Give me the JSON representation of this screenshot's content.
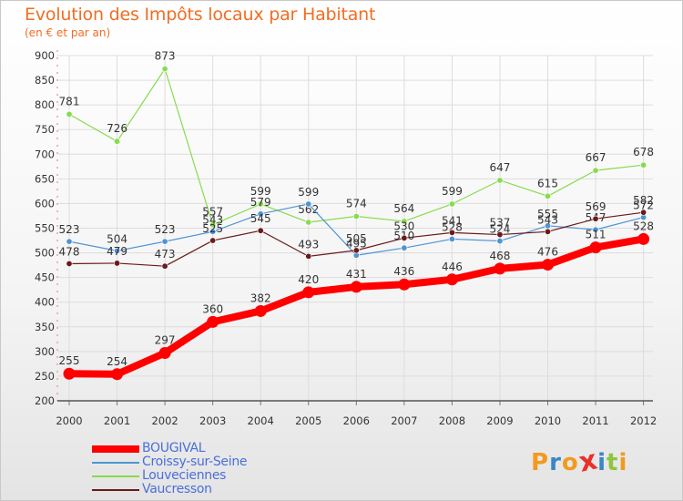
{
  "chart_data": {
    "type": "line",
    "title": "Evolution des Impôts locaux par Habitant",
    "subtitle": "(en € et par an)",
    "xlabel": "",
    "ylabel": "",
    "ylim": [
      200,
      900
    ],
    "yticks": [
      200,
      250,
      300,
      350,
      400,
      450,
      500,
      550,
      600,
      650,
      700,
      750,
      800,
      850,
      900
    ],
    "categories": [
      "2000",
      "2001",
      "2002",
      "2003",
      "2004",
      "2005",
      "2006",
      "2007",
      "2008",
      "2009",
      "2010",
      "2011",
      "2012"
    ],
    "grid": true,
    "legend_position": "bottom-left",
    "series": [
      {
        "name": "BOUGIVAL",
        "color": "#ff0000",
        "values": [
          255,
          254,
          297,
          360,
          382,
          420,
          431,
          436,
          446,
          468,
          476,
          511,
          528
        ]
      },
      {
        "name": "Croissy-sur-Seine",
        "color": "#4f94d4",
        "values": [
          523,
          504,
          523,
          543,
          579,
          599,
          495,
          510,
          528,
          524,
          555,
          547,
          572
        ]
      },
      {
        "name": "Louveciennes",
        "color": "#88db4e",
        "values": [
          781,
          726,
          873,
          557,
          599,
          562,
          574,
          564,
          599,
          647,
          615,
          667,
          678
        ]
      },
      {
        "name": "Vaucresson",
        "color": "#6b1a1a",
        "values": [
          478,
          479,
          473,
          525,
          545,
          493,
          505,
          530,
          541,
          537,
          543,
          569,
          582
        ]
      }
    ]
  },
  "brand": {
    "text": "Proxiti",
    "letters": [
      "P",
      "r",
      "o",
      "x",
      "i",
      "t",
      "i"
    ],
    "colors": [
      "#f29a1f",
      "#3a86c8",
      "#f29a1f",
      "#e8312a",
      "#3a86c8",
      "#8cc63f",
      "#f29a1f"
    ]
  }
}
